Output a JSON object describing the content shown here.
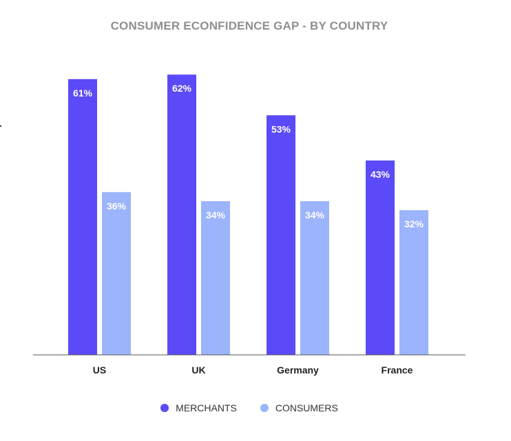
{
  "chart_data": {
    "type": "bar",
    "title": "CONSUMER ECONFIDENCE GAP - BY COUNTRY",
    "categories": [
      "US",
      "UK",
      "Germany",
      "France"
    ],
    "series": [
      {
        "name": "MERCHANTS",
        "values": [
          61,
          62,
          53,
          43
        ],
        "labels": [
          "61%",
          "62%",
          "53%",
          "43%"
        ],
        "color": "#5b4af7"
      },
      {
        "name": "CONSUMERS",
        "values": [
          36,
          34,
          34,
          32
        ],
        "labels": [
          "36%",
          "34%",
          "34%",
          "32%"
        ],
        "color": "#9bb4fb"
      }
    ],
    "ylim": [
      0,
      66
    ],
    "grid": false,
    "legend": "bottom-center"
  }
}
